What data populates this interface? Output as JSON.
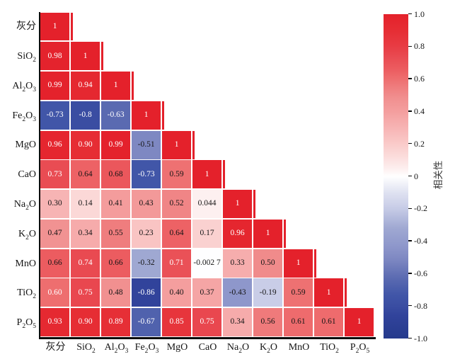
{
  "chart_data": {
    "type": "heatmap",
    "variant": "lower-triangle-correlation-matrix",
    "title": "",
    "variables": [
      "灰分",
      "SiO₂",
      "Al₂O₃",
      "Fe₂O₃",
      "MgO",
      "CaO",
      "Na₂O",
      "K₂O",
      "MnO",
      "TiO₂",
      "P₂O₅"
    ],
    "matrix_display": [
      [
        "1"
      ],
      [
        "0.98",
        "1"
      ],
      [
        "0.99",
        "0.94",
        "1"
      ],
      [
        "-0.73",
        "-0.8",
        "-0.63",
        "1"
      ],
      [
        "0.96",
        "0.90",
        "0.99",
        "-0.51",
        "1"
      ],
      [
        "0.73",
        "0.64",
        "0.68",
        "-0.73",
        "0.59",
        "1"
      ],
      [
        "0.30",
        "0.14",
        "0.41",
        "0.43",
        "0.52",
        "0.044",
        "1"
      ],
      [
        "0.47",
        "0.34",
        "0.55",
        "0.23",
        "0.64",
        "0.17",
        "0.96",
        "1"
      ],
      [
        "0.66",
        "0.74",
        "0.66",
        "-0.32",
        "0.71",
        "-0.002 7",
        "0.33",
        "0.50",
        "1"
      ],
      [
        "0.60",
        "0.75",
        "0.48",
        "-0.86",
        "0.40",
        "0.37",
        "-0.43",
        "-0.19",
        "0.59",
        "1"
      ],
      [
        "0.93",
        "0.90",
        "0.89",
        "-0.67",
        "0.85",
        "0.75",
        "0.34",
        "0.56",
        "0.61",
        "0.61",
        "1"
      ]
    ],
    "matrix_values": [
      [
        1
      ],
      [
        0.98,
        1
      ],
      [
        0.99,
        0.94,
        1
      ],
      [
        -0.73,
        -0.8,
        -0.63,
        1
      ],
      [
        0.96,
        0.9,
        0.99,
        -0.51,
        1
      ],
      [
        0.73,
        0.64,
        0.68,
        -0.73,
        0.59,
        1
      ],
      [
        0.3,
        0.14,
        0.41,
        0.43,
        0.52,
        0.044,
        1
      ],
      [
        0.47,
        0.34,
        0.55,
        0.23,
        0.64,
        0.17,
        0.96,
        1
      ],
      [
        0.66,
        0.74,
        0.66,
        -0.32,
        0.71,
        -0.0027,
        0.33,
        0.5,
        1
      ],
      [
        0.6,
        0.75,
        0.48,
        -0.86,
        0.4,
        0.37,
        -0.43,
        -0.19,
        0.59,
        1
      ],
      [
        0.93,
        0.9,
        0.89,
        -0.67,
        0.85,
        0.75,
        0.34,
        0.56,
        0.61,
        0.61,
        1
      ]
    ],
    "cell_text_colors": [
      [
        "w"
      ],
      [
        "w",
        "w"
      ],
      [
        "w",
        "w",
        "w"
      ],
      [
        "w",
        "w",
        "w",
        "w"
      ],
      [
        "w",
        "w",
        "w",
        "b",
        "w"
      ],
      [
        "w",
        "b",
        "b",
        "w",
        "b",
        "w"
      ],
      [
        "b",
        "b",
        "b",
        "b",
        "b",
        "b",
        "w"
      ],
      [
        "b",
        "b",
        "b",
        "b",
        "b",
        "b",
        "w",
        "w"
      ],
      [
        "b",
        "w",
        "b",
        "b",
        "w",
        "b",
        "b",
        "b",
        "w"
      ],
      [
        "w",
        "w",
        "b",
        "w",
        "b",
        "b",
        "b",
        "b",
        "b",
        "w"
      ],
      [
        "w",
        "w",
        "w",
        "w",
        "w",
        "w",
        "b",
        "b",
        "b",
        "b",
        "w"
      ]
    ],
    "colorbar": {
      "label": "相关性",
      "tick_labels": [
        "1.0",
        "0.8",
        "0.6",
        "0.4",
        "0.2",
        "0",
        "-0.2",
        "-0.4",
        "-0.6",
        "-0.8",
        "-1.0"
      ],
      "range": [
        -1,
        1
      ]
    },
    "colors": {
      "text_light": "#ffffff",
      "text_dark": "#161616",
      "axis": "#0c0c0c",
      "background": "#ffffff",
      "positive_max": "#e4212b",
      "negative_max": "#253a8c"
    },
    "colormap_stops": [
      {
        "v": 1.0,
        "color": "#e4212b"
      },
      {
        "v": 0.9,
        "color": "#e62d34"
      },
      {
        "v": 0.8,
        "color": "#e83c44"
      },
      {
        "v": 0.73,
        "color": "#e94c53"
      },
      {
        "v": 0.66,
        "color": "#ec5c60"
      },
      {
        "v": 0.6,
        "color": "#ee6e6f"
      },
      {
        "v": 0.55,
        "color": "#ef7d7e"
      },
      {
        "v": 0.48,
        "color": "#f19090"
      },
      {
        "v": 0.4,
        "color": "#f49e9e"
      },
      {
        "v": 0.3,
        "color": "#f7b4b4"
      },
      {
        "v": 0.23,
        "color": "#f9c4c3"
      },
      {
        "v": 0.14,
        "color": "#fbd8d7"
      },
      {
        "v": 0.05,
        "color": "#fdeeee"
      },
      {
        "v": 0.0,
        "color": "#ffffff"
      },
      {
        "v": -0.1,
        "color": "#dfe2f1"
      },
      {
        "v": -0.2,
        "color": "#c6cbe6"
      },
      {
        "v": -0.32,
        "color": "#9fa8d2"
      },
      {
        "v": -0.43,
        "color": "#8e97cb"
      },
      {
        "v": -0.51,
        "color": "#7e88c2"
      },
      {
        "v": -0.63,
        "color": "#5a6ab1"
      },
      {
        "v": -0.73,
        "color": "#4156a8"
      },
      {
        "v": -0.8,
        "color": "#3a4da2"
      },
      {
        "v": -0.86,
        "color": "#31439b"
      },
      {
        "v": -1.0,
        "color": "#253a8c"
      }
    ]
  }
}
